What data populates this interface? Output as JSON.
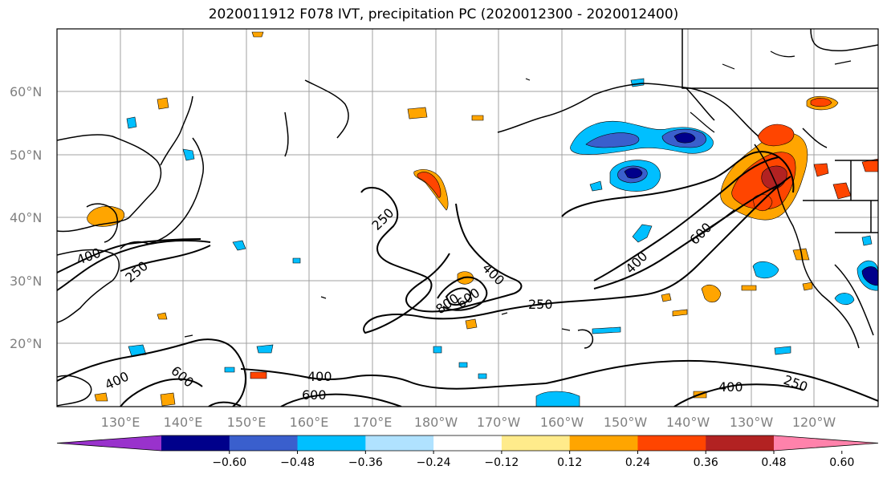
{
  "title": "2020011912 F078 IVT, precipitation PC (2020012300 - 2020012400)",
  "lat_labels": [
    "60°N",
    "50°N",
    "40°N",
    "30°N",
    "20°N"
  ],
  "lon_labels": [
    "130°E",
    "140°E",
    "150°E",
    "160°E",
    "170°E",
    "180°W",
    "170°W",
    "160°W",
    "150°W",
    "140°W",
    "130°W",
    "120°W"
  ],
  "ivt_contour_labels": [
    "250",
    "400",
    "600",
    "800"
  ],
  "colorbar": {
    "tick_labels": [
      "−0.60",
      "−0.48",
      "−0.36",
      "−0.24",
      "−0.12",
      "0.12",
      "0.24",
      "0.36",
      "0.48",
      "0.60"
    ],
    "colors": [
      "#9932cc",
      "#00008b",
      "#3a5fcd",
      "#00bfff",
      "#b0e2ff",
      "#ffffff",
      "#ffeb8b",
      "#ffa500",
      "#ff4500",
      "#b22222",
      "#ff82ab"
    ]
  },
  "colors": {
    "land_outline": "#000000",
    "grid": "#a0a0a0",
    "axis_label": "#808080"
  }
}
